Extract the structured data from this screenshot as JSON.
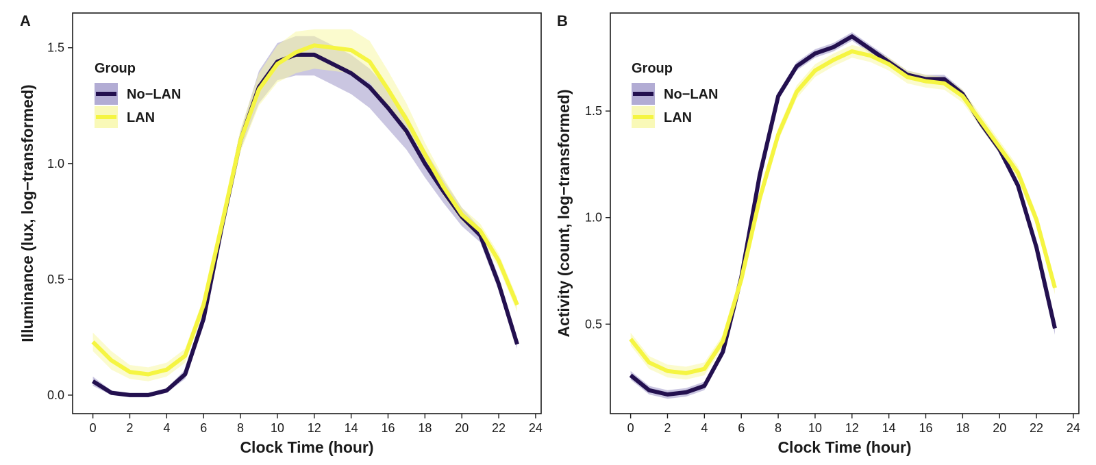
{
  "chart_data": [
    {
      "type": "line",
      "panel": "A",
      "xlabel": "Clock Time (hour)",
      "ylabel": "Illuminance (lux, log−transformed)",
      "xlim": [
        -1.1,
        24.3
      ],
      "ylim": [
        -0.08,
        1.65
      ],
      "xticks": [
        0,
        2,
        4,
        6,
        8,
        10,
        12,
        14,
        16,
        18,
        20,
        22,
        24
      ],
      "xtick_labels": [
        "0",
        "2",
        "4",
        "6",
        "8",
        "10",
        "12",
        "14",
        "16",
        "18",
        "20",
        "22",
        "24"
      ],
      "yticks": [
        0.0,
        0.5,
        1.0,
        1.5
      ],
      "ytick_labels": [
        "0.0",
        "0.5",
        "1.0",
        "1.5"
      ],
      "grid": false,
      "legend": {
        "title": "Group",
        "position": "top-left"
      },
      "x": [
        0,
        1,
        2,
        3,
        4,
        5,
        6,
        7,
        8,
        9,
        10,
        11,
        12,
        13,
        14,
        15,
        16,
        17,
        18,
        19,
        20,
        21,
        22,
        23
      ],
      "series": [
        {
          "name": "No−LAN",
          "color": "#23104f",
          "band_color": "#9f97c9",
          "values": [
            0.06,
            0.01,
            0.0,
            0.0,
            0.02,
            0.09,
            0.33,
            0.73,
            1.1,
            1.33,
            1.44,
            1.47,
            1.47,
            1.43,
            1.39,
            1.33,
            1.24,
            1.14,
            1.0,
            0.88,
            0.77,
            0.69,
            0.48,
            0.22
          ],
          "lower": [
            0.04,
            0.0,
            -0.01,
            -0.01,
            0.01,
            0.07,
            0.3,
            0.7,
            1.06,
            1.26,
            1.36,
            1.38,
            1.38,
            1.34,
            1.3,
            1.24,
            1.15,
            1.06,
            0.94,
            0.83,
            0.73,
            0.66,
            0.45,
            0.2
          ],
          "upper": [
            0.08,
            0.02,
            0.01,
            0.01,
            0.03,
            0.11,
            0.36,
            0.76,
            1.14,
            1.4,
            1.52,
            1.55,
            1.55,
            1.51,
            1.47,
            1.41,
            1.32,
            1.21,
            1.06,
            0.93,
            0.81,
            0.72,
            0.51,
            0.24
          ]
        },
        {
          "name": "LAN",
          "color": "#f5f542",
          "band_color": "#f8f8a6",
          "values": [
            0.23,
            0.15,
            0.1,
            0.09,
            0.11,
            0.17,
            0.39,
            0.74,
            1.1,
            1.32,
            1.43,
            1.48,
            1.51,
            1.5,
            1.49,
            1.44,
            1.32,
            1.19,
            1.04,
            0.9,
            0.78,
            0.71,
            0.58,
            0.39
          ],
          "lower": [
            0.19,
            0.11,
            0.07,
            0.06,
            0.08,
            0.14,
            0.36,
            0.7,
            1.05,
            1.25,
            1.35,
            1.39,
            1.41,
            1.4,
            1.39,
            1.35,
            1.24,
            1.12,
            0.99,
            0.86,
            0.75,
            0.68,
            0.55,
            0.36
          ],
          "upper": [
            0.27,
            0.19,
            0.13,
            0.12,
            0.14,
            0.2,
            0.42,
            0.78,
            1.15,
            1.39,
            1.51,
            1.57,
            1.58,
            1.58,
            1.58,
            1.53,
            1.4,
            1.26,
            1.09,
            0.94,
            0.81,
            0.74,
            0.61,
            0.42
          ]
        }
      ]
    },
    {
      "type": "line",
      "panel": "B",
      "xlabel": "Clock Time (hour)",
      "ylabel": "Activity (count, log−transformed)",
      "xlim": [
        -1.1,
        24.3
      ],
      "ylim": [
        0.08,
        1.96
      ],
      "xticks": [
        0,
        2,
        4,
        6,
        8,
        10,
        12,
        14,
        16,
        18,
        20,
        22,
        24
      ],
      "xtick_labels": [
        "0",
        "2",
        "4",
        "6",
        "8",
        "10",
        "12",
        "14",
        "16",
        "18",
        "20",
        "22",
        "24"
      ],
      "yticks": [
        0.5,
        1.0,
        1.5
      ],
      "ytick_labels": [
        "0.5",
        "1.0",
        "1.5"
      ],
      "grid": false,
      "legend": {
        "title": "Group",
        "position": "top-left"
      },
      "x": [
        0,
        1,
        2,
        3,
        4,
        5,
        6,
        7,
        8,
        9,
        10,
        11,
        12,
        13,
        14,
        15,
        16,
        17,
        18,
        19,
        20,
        21,
        22,
        23
      ],
      "series": [
        {
          "name": "No−LAN",
          "color": "#23104f",
          "band_color": "#9f97c9",
          "values": [
            0.26,
            0.19,
            0.17,
            0.18,
            0.21,
            0.37,
            0.72,
            1.2,
            1.57,
            1.71,
            1.77,
            1.8,
            1.85,
            1.79,
            1.73,
            1.67,
            1.65,
            1.65,
            1.58,
            1.44,
            1.32,
            1.15,
            0.86,
            0.48
          ],
          "lower": [
            0.24,
            0.17,
            0.15,
            0.16,
            0.19,
            0.35,
            0.7,
            1.18,
            1.55,
            1.69,
            1.75,
            1.78,
            1.83,
            1.77,
            1.71,
            1.65,
            1.63,
            1.63,
            1.56,
            1.42,
            1.3,
            1.13,
            0.84,
            0.45
          ],
          "upper": [
            0.28,
            0.21,
            0.19,
            0.2,
            0.23,
            0.39,
            0.74,
            1.22,
            1.59,
            1.73,
            1.79,
            1.82,
            1.87,
            1.81,
            1.75,
            1.69,
            1.67,
            1.67,
            1.6,
            1.46,
            1.34,
            1.17,
            0.88,
            0.51
          ]
        },
        {
          "name": "LAN",
          "color": "#f5f542",
          "band_color": "#f8f8a6",
          "values": [
            0.43,
            0.32,
            0.28,
            0.27,
            0.29,
            0.42,
            0.71,
            1.09,
            1.39,
            1.59,
            1.69,
            1.74,
            1.78,
            1.76,
            1.72,
            1.66,
            1.64,
            1.63,
            1.57,
            1.45,
            1.33,
            1.21,
            0.99,
            0.67
          ],
          "lower": [
            0.4,
            0.29,
            0.25,
            0.24,
            0.26,
            0.39,
            0.68,
            1.06,
            1.36,
            1.56,
            1.66,
            1.71,
            1.75,
            1.73,
            1.69,
            1.63,
            1.61,
            1.6,
            1.54,
            1.42,
            1.3,
            1.18,
            0.96,
            0.64
          ],
          "upper": [
            0.46,
            0.35,
            0.31,
            0.3,
            0.32,
            0.45,
            0.74,
            1.12,
            1.42,
            1.62,
            1.72,
            1.77,
            1.81,
            1.79,
            1.75,
            1.69,
            1.67,
            1.66,
            1.6,
            1.48,
            1.36,
            1.24,
            1.02,
            0.7
          ]
        }
      ]
    }
  ]
}
